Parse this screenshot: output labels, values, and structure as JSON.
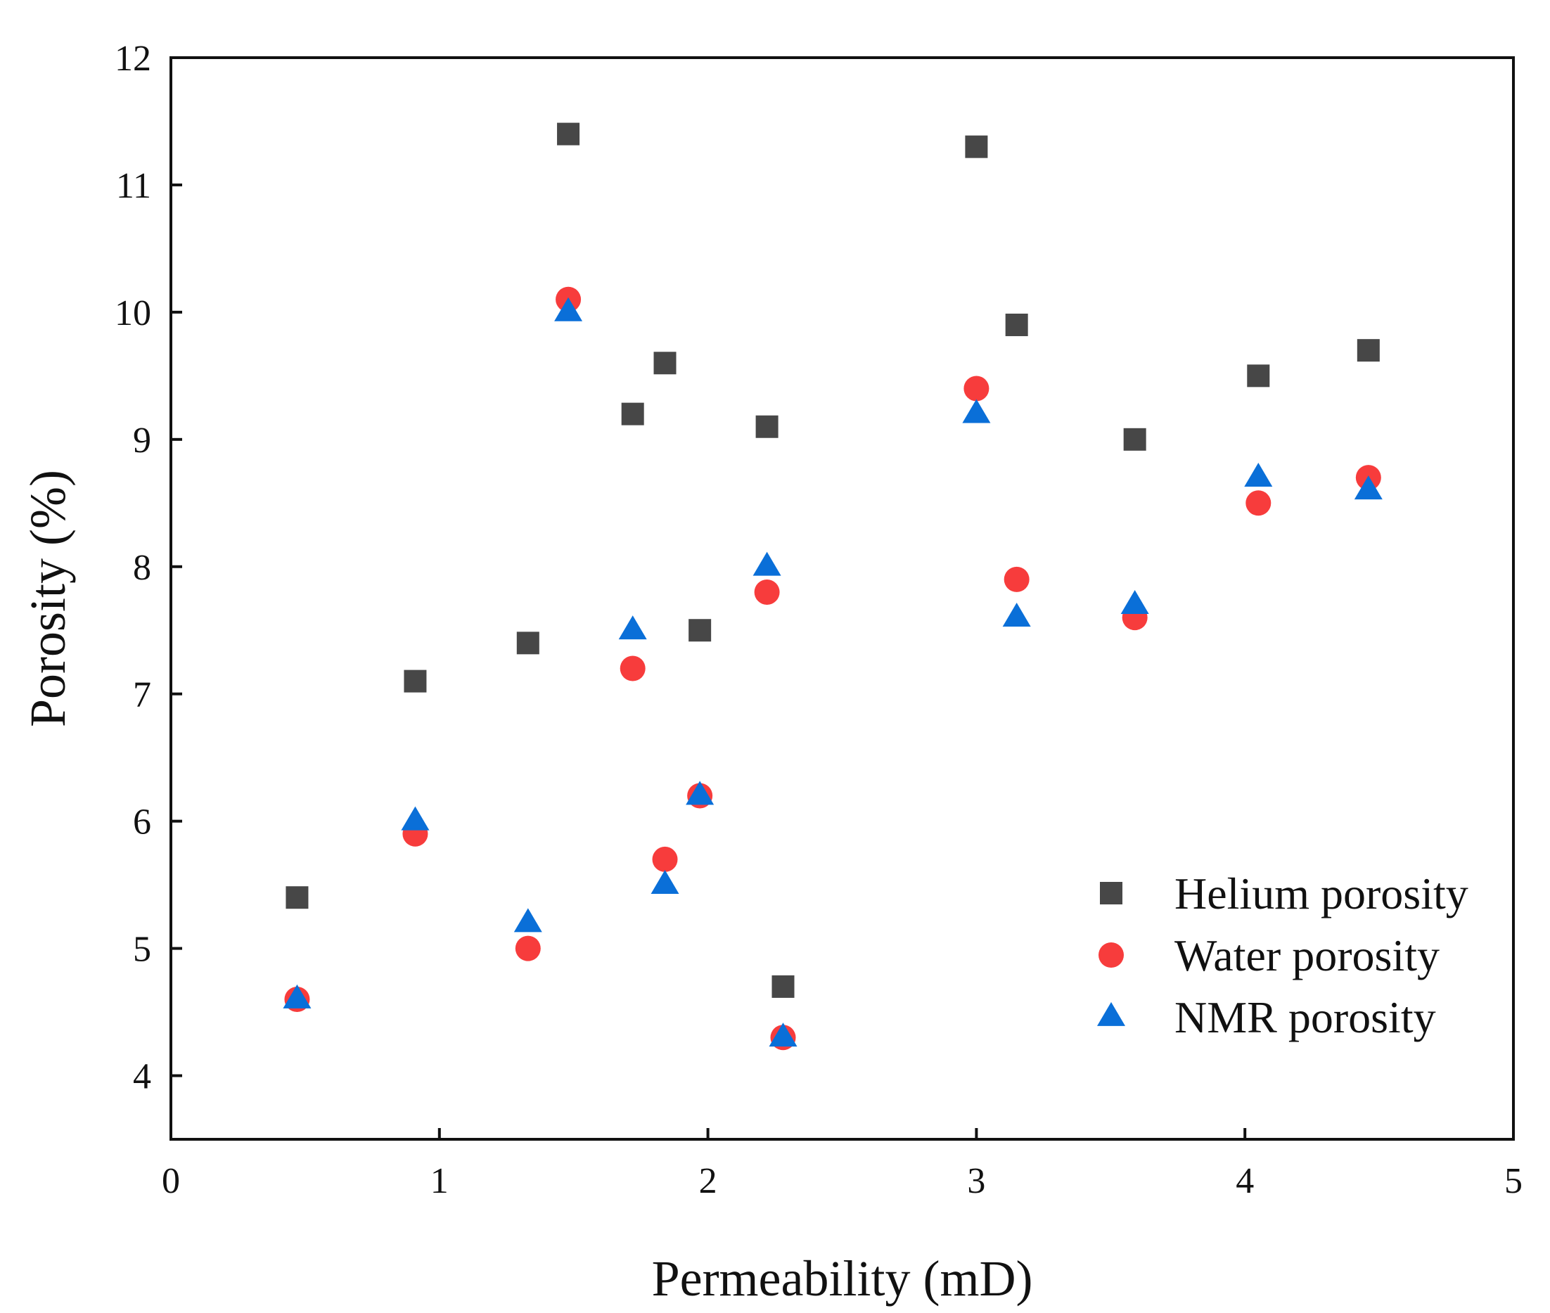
{
  "chart_data": {
    "type": "scatter",
    "title": "",
    "xlabel": "Permeability (mD)",
    "ylabel": "Porosity (%)",
    "xlim": [
      0,
      5
    ],
    "ylim": [
      3.5,
      12
    ],
    "xticks": [
      0,
      1,
      2,
      3,
      4,
      5
    ],
    "yticks": [
      4,
      5,
      6,
      7,
      8,
      9,
      10,
      11,
      12
    ],
    "grid": false,
    "legend_position": "bottom-right",
    "series": [
      {
        "name": "Helium porosity",
        "marker": "square",
        "color": "#474747",
        "points": [
          [
            0.47,
            5.4
          ],
          [
            0.91,
            7.1
          ],
          [
            1.33,
            7.4
          ],
          [
            1.48,
            11.4
          ],
          [
            1.72,
            9.2
          ],
          [
            1.84,
            9.6
          ],
          [
            1.97,
            7.5
          ],
          [
            2.22,
            9.1
          ],
          [
            2.28,
            4.7
          ],
          [
            3.0,
            11.3
          ],
          [
            3.15,
            9.9
          ],
          [
            3.59,
            9.0
          ],
          [
            4.05,
            9.5
          ],
          [
            4.46,
            9.7
          ]
        ]
      },
      {
        "name": "Water porosity",
        "marker": "circle",
        "color": "#f73c3c",
        "points": [
          [
            0.47,
            4.6
          ],
          [
            0.91,
            5.9
          ],
          [
            1.33,
            5.0
          ],
          [
            1.48,
            10.1
          ],
          [
            1.72,
            7.2
          ],
          [
            1.84,
            5.7
          ],
          [
            1.97,
            6.2
          ],
          [
            2.22,
            7.8
          ],
          [
            2.28,
            4.3
          ],
          [
            3.0,
            9.4
          ],
          [
            3.15,
            7.9
          ],
          [
            3.59,
            7.6
          ],
          [
            4.05,
            8.5
          ],
          [
            4.46,
            8.7
          ]
        ]
      },
      {
        "name": "NMR porosity",
        "marker": "triangle",
        "color": "#0a6fd8",
        "points": [
          [
            0.47,
            4.6
          ],
          [
            0.91,
            6.0
          ],
          [
            1.33,
            5.2
          ],
          [
            1.48,
            10.0
          ],
          [
            1.72,
            7.5
          ],
          [
            1.84,
            5.5
          ],
          [
            1.97,
            6.2
          ],
          [
            2.22,
            8.0
          ],
          [
            2.28,
            4.3
          ],
          [
            3.0,
            9.2
          ],
          [
            3.15,
            7.6
          ],
          [
            3.59,
            7.7
          ],
          [
            4.05,
            8.7
          ],
          [
            4.46,
            8.6
          ]
        ]
      }
    ]
  }
}
